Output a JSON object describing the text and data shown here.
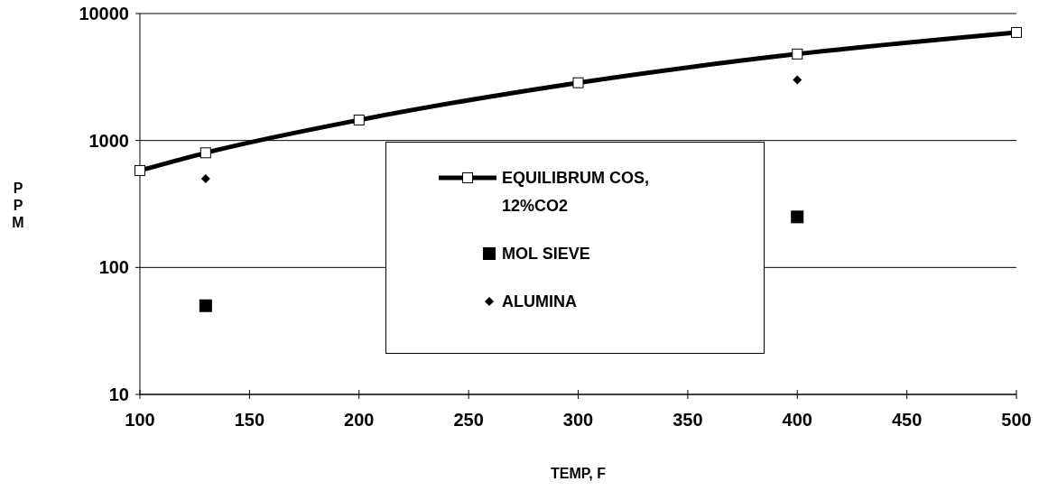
{
  "chart_data": {
    "type": "line",
    "xlabel": "TEMP,  F",
    "ylabel": "PPM",
    "log": "y",
    "xlim": [
      100,
      500
    ],
    "xticks": [
      100,
      150,
      200,
      250,
      300,
      350,
      400,
      450,
      500
    ],
    "ylim": [
      10,
      10000
    ],
    "yticks": [
      10,
      100,
      1000,
      10000
    ],
    "grid": "y",
    "legend": "center",
    "series": [
      {
        "name": "EQUILIBRUM COS, 12%CO2",
        "type": "line",
        "color": "#000000",
        "marker": "square",
        "x": [
          100,
          130,
          200,
          300,
          400,
          500
        ],
        "values": [
          580,
          800,
          1450,
          2850,
          4800,
          7100
        ]
      },
      {
        "name": "MOL SIEVE",
        "type": "scatter",
        "color": "#000000",
        "marker": "square",
        "x": [
          130,
          400
        ],
        "values": [
          50,
          250
        ]
      },
      {
        "name": "ALUMINA",
        "type": "scatter",
        "color": "#000000",
        "marker": "diamond",
        "x": [
          130,
          400
        ],
        "values": [
          500,
          3000
        ]
      }
    ]
  }
}
